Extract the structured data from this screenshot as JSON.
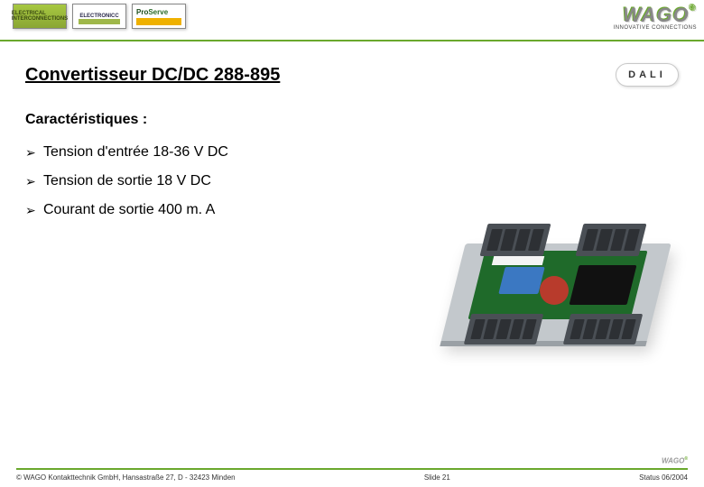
{
  "header": {
    "brand1": "ELECTRICAL INTERCONNECTIONS",
    "brand2": "ELECTRONICC",
    "brand3_top": "Pro",
    "brand3_bot": "Serve",
    "logo_text": "WAGO",
    "tagline": "INNOVATIVE CONNECTIONS",
    "accent_color": "#6aa82d"
  },
  "title": "Convertisseur DC/DC 288-895",
  "dali_label": "DALI",
  "subheading": "Caractéristiques :",
  "bullets": [
    "Tension d'entrée 18-36 V DC",
    "Tension de sortie 18 V DC",
    "Courant de sortie 400 m. A"
  ],
  "image": {
    "base_color": "#c3c8cc",
    "pcb_color": "#1f6a2a",
    "terminal_color": "#4a4f55",
    "capacitor_blue": "#3b78c2",
    "capacitor_red": "#b83b2c",
    "chip_color": "#111111"
  },
  "footer": {
    "copyright": "© WAGO Kontakttechnik GmbH, Hansastraße 27, D - 32423 Minden",
    "slide": "Slide 21",
    "status": "Status 06/2004",
    "mini_logo": "WAGO"
  },
  "typography": {
    "title_fontsize_pt": 15,
    "body_fontsize_pt": 12,
    "footer_fontsize_pt": 6,
    "font_family": "Arial"
  }
}
